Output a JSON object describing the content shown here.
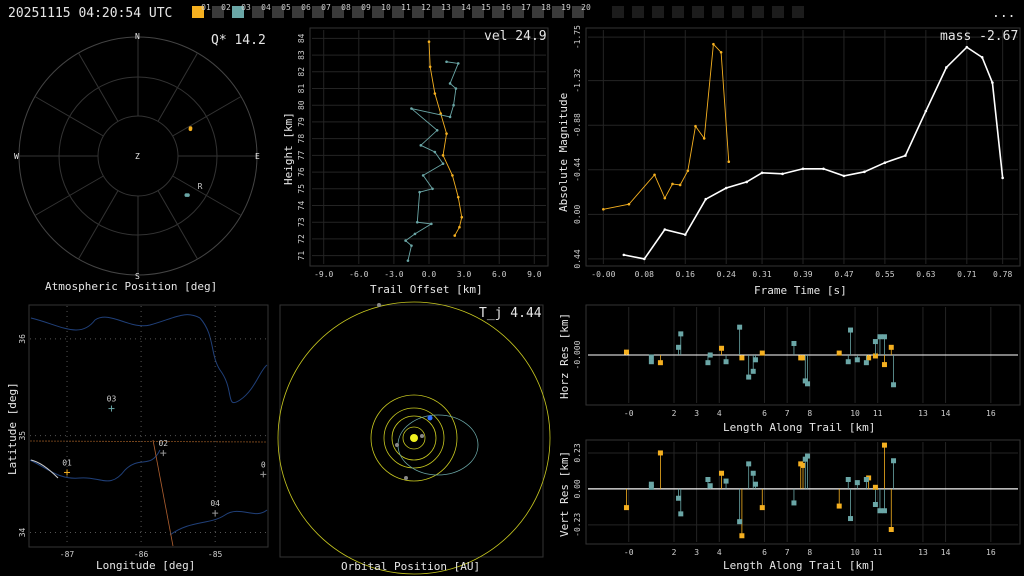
{
  "header": {
    "timestamp": "20251115 04:20:54 UTC",
    "menu": "...",
    "stations": [
      {
        "label": "01",
        "state": "active",
        "color": "#f5b020"
      },
      {
        "label": "02",
        "state": "off"
      },
      {
        "label": "03",
        "state": "active",
        "color": "#6aa6a6"
      },
      {
        "label": "04",
        "state": "off"
      },
      {
        "label": "05",
        "state": "off"
      },
      {
        "label": "06",
        "state": "off"
      },
      {
        "label": "07",
        "state": "off"
      },
      {
        "label": "08",
        "state": "off"
      },
      {
        "label": "09",
        "state": "off"
      },
      {
        "label": "10",
        "state": "off"
      },
      {
        "label": "11",
        "state": "off"
      },
      {
        "label": "12",
        "state": "off"
      },
      {
        "label": "13",
        "state": "off"
      },
      {
        "label": "14",
        "state": "off"
      },
      {
        "label": "15",
        "state": "off"
      },
      {
        "label": "16",
        "state": "off"
      },
      {
        "label": "17",
        "state": "off"
      },
      {
        "label": "18",
        "state": "off"
      },
      {
        "label": "19",
        "state": "off"
      },
      {
        "label": "20",
        "state": "off"
      }
    ]
  },
  "colors": {
    "orange": "#f5b020",
    "teal": "#6aa6a6",
    "yellow": "#e0e020",
    "white": "#ffffff",
    "grid": "#2a2a2a",
    "blue": "#3070ff"
  },
  "chart_data": [
    {
      "id": "atmospheric",
      "type": "scatter",
      "xlabel": "Atmospheric Position [deg]",
      "annotation": "Q* 14.2",
      "compass": {
        "n": "N",
        "s": "S",
        "e": "E",
        "w": "W",
        "zenith": "Z"
      },
      "series": [
        {
          "color": "orange",
          "points": [
            [
              45.0,
              62.0
            ],
            [
              44.5,
              63.0
            ]
          ]
        },
        {
          "color": "teal",
          "label": "R",
          "points": [
            [
              48.0,
              128.0
            ],
            [
              47.0,
              129.0
            ]
          ]
        }
      ]
    },
    {
      "id": "height",
      "type": "line",
      "ylabel": "Height [km]",
      "xlabel": "Trail Offset [km]",
      "annotation": "vel 24.9",
      "xlim": [
        -10,
        10
      ],
      "ylim": [
        70.5,
        84.5
      ],
      "xticks": [
        "-9.0",
        "-6.0",
        "-3.0",
        "0.0",
        "3.0",
        "6.0",
        "9.0"
      ],
      "yticks": [
        "71",
        "72",
        "73",
        "74",
        "75",
        "76",
        "77",
        "78",
        "79",
        "80",
        "81",
        "82",
        "83",
        "84"
      ],
      "series": [
        {
          "color": "orange",
          "points": [
            [
              0.0,
              83.8
            ],
            [
              0.1,
              82.3
            ],
            [
              0.5,
              80.7
            ],
            [
              1.0,
              79.5
            ],
            [
              1.5,
              78.3
            ],
            [
              1.2,
              77.0
            ],
            [
              2.0,
              75.8
            ],
            [
              2.5,
              74.5
            ],
            [
              2.8,
              73.3
            ],
            [
              2.6,
              72.7
            ],
            [
              2.2,
              72.2
            ]
          ]
        },
        {
          "color": "teal",
          "points": [
            [
              1.5,
              82.6
            ],
            [
              2.5,
              82.5
            ],
            [
              1.8,
              81.3
            ],
            [
              2.3,
              81.0
            ],
            [
              2.1,
              80.0
            ],
            [
              1.8,
              79.3
            ],
            [
              -1.5,
              79.8
            ],
            [
              0.7,
              78.5
            ],
            [
              -0.7,
              77.6
            ],
            [
              0.5,
              77.2
            ],
            [
              1.2,
              76.5
            ],
            [
              -0.5,
              75.8
            ],
            [
              0.3,
              75.0
            ],
            [
              -0.8,
              74.8
            ],
            [
              -1.0,
              73.0
            ],
            [
              0.2,
              72.9
            ],
            [
              -1.2,
              72.3
            ],
            [
              -2.0,
              71.9
            ],
            [
              -1.5,
              71.6
            ],
            [
              -1.8,
              70.7
            ]
          ]
        }
      ]
    },
    {
      "id": "magnitude",
      "type": "line",
      "ylabel": "Absolute Magnitude",
      "xlabel": "Frame Time [s]",
      "annotation": "mass -2.67",
      "xlim": [
        -0.03,
        0.81
      ],
      "ylim": [
        0.49,
        -1.82
      ],
      "xticks": [
        "-0.00",
        "0.08",
        "0.16",
        "0.24",
        "0.31",
        "0.39",
        "0.47",
        "0.55",
        "0.63",
        "0.71",
        "0.78"
      ],
      "yticks": [
        "0.44",
        "0.00",
        "-0.44",
        "-0.88",
        "-1.32",
        "-1.75"
      ],
      "series": [
        {
          "color": "orange",
          "points": [
            [
              0.0,
              -0.05
            ],
            [
              0.05,
              -0.1
            ],
            [
              0.1,
              -0.39
            ],
            [
              0.12,
              -0.16
            ],
            [
              0.135,
              -0.3
            ],
            [
              0.15,
              -0.29
            ],
            [
              0.165,
              -0.43
            ],
            [
              0.18,
              -0.87
            ],
            [
              0.197,
              -0.75
            ],
            [
              0.215,
              -1.68
            ],
            [
              0.23,
              -1.6
            ],
            [
              0.245,
              -0.52
            ]
          ]
        },
        {
          "color": "white",
          "points": [
            [
              0.04,
              0.4
            ],
            [
              0.08,
              0.44
            ],
            [
              0.12,
              0.15
            ],
            [
              0.16,
              0.2
            ],
            [
              0.2,
              -0.15
            ],
            [
              0.24,
              -0.26
            ],
            [
              0.28,
              -0.32
            ],
            [
              0.31,
              -0.41
            ],
            [
              0.35,
              -0.4
            ],
            [
              0.39,
              -0.45
            ],
            [
              0.43,
              -0.45
            ],
            [
              0.47,
              -0.38
            ],
            [
              0.51,
              -0.42
            ],
            [
              0.55,
              -0.51
            ],
            [
              0.59,
              -0.58
            ],
            [
              0.63,
              -1.02
            ],
            [
              0.67,
              -1.45
            ],
            [
              0.71,
              -1.65
            ],
            [
              0.74,
              -1.55
            ],
            [
              0.76,
              -1.3
            ],
            [
              0.78,
              -0.36
            ]
          ]
        }
      ]
    },
    {
      "id": "map",
      "type": "scatter",
      "ylabel": "Latitude [deg]",
      "xlabel": "Longitude [deg]",
      "xlim": [
        -87.5,
        -84.3
      ],
      "ylim": [
        33.85,
        36.35
      ],
      "xticks": [
        "-87",
        "-86",
        "-85"
      ],
      "yticks": [
        "34",
        "35",
        "36"
      ],
      "stations": [
        {
          "label": "01",
          "lon": -87.0,
          "lat": 34.62,
          "color": "orange"
        },
        {
          "label": "02",
          "lon": -85.7,
          "lat": 34.82,
          "color": "grey"
        },
        {
          "label": "03",
          "lon": -86.4,
          "lat": 35.28,
          "color": "teal"
        },
        {
          "label": "04",
          "lon": -85.0,
          "lat": 34.2,
          "color": "grey"
        },
        {
          "label": "0",
          "lon": -84.35,
          "lat": 34.6,
          "color": "grey"
        }
      ]
    },
    {
      "id": "orbit",
      "type": "scatter",
      "xlabel": "Orbital Position [AU]",
      "annotation": "T_j 4.44"
    },
    {
      "id": "horz_res",
      "type": "scatter",
      "ylabel": "Horz Res [km]",
      "xlabel": "Length Along Trail [km]",
      "xlim": [
        -1.8,
        17.2
      ],
      "ylim": [
        -0.5,
        0.5
      ],
      "xticks": [
        "-0",
        "2",
        "3",
        "4",
        "6",
        "7",
        "8",
        "10",
        "11",
        "13",
        "14",
        "16"
      ],
      "yticks": [
        "-0.000"
      ],
      "series": [
        {
          "color": "orange",
          "points": [
            [
              -0.1,
              0.03
            ],
            [
              1.4,
              -0.08
            ],
            [
              4.1,
              0.07
            ],
            [
              5.0,
              -0.03
            ],
            [
              5.9,
              0.02
            ],
            [
              7.6,
              -0.03
            ],
            [
              7.7,
              -0.03
            ],
            [
              9.3,
              0.02
            ],
            [
              10.6,
              -0.03
            ],
            [
              10.9,
              -0.01
            ],
            [
              11.3,
              -0.1
            ],
            [
              11.6,
              0.08
            ]
          ]
        },
        {
          "color": "teal",
          "points": [
            [
              1.0,
              -0.02
            ],
            [
              1.0,
              -0.07
            ],
            [
              2.2,
              0.08
            ],
            [
              2.3,
              0.22
            ],
            [
              3.5,
              -0.08
            ],
            [
              3.6,
              0.0
            ],
            [
              4.3,
              -0.07
            ],
            [
              4.9,
              0.29
            ],
            [
              5.3,
              -0.23
            ],
            [
              5.5,
              -0.17
            ],
            [
              5.6,
              -0.05
            ],
            [
              7.3,
              0.12
            ],
            [
              7.8,
              -0.27
            ],
            [
              7.9,
              -0.3
            ],
            [
              9.7,
              -0.07
            ],
            [
              9.8,
              0.26
            ],
            [
              10.1,
              -0.05
            ],
            [
              10.5,
              -0.08
            ],
            [
              10.9,
              0.14
            ],
            [
              11.1,
              0.19
            ],
            [
              11.3,
              0.19
            ],
            [
              11.7,
              -0.31
            ]
          ]
        }
      ]
    },
    {
      "id": "vert_res",
      "type": "scatter",
      "ylabel": "Vert Res [km]",
      "xlabel": "Length Along Trail [km]",
      "xlim": [
        -1.8,
        17.2
      ],
      "ylim": [
        -0.34,
        0.3
      ],
      "xticks": [
        "-0",
        "2",
        "3",
        "4",
        "6",
        "7",
        "8",
        "10",
        "11",
        "13",
        "14",
        "16"
      ],
      "yticks": [
        "-0.23",
        "0.00",
        "0.23"
      ],
      "series": [
        {
          "color": "orange",
          "points": [
            [
              -0.1,
              -0.12
            ],
            [
              1.4,
              0.23
            ],
            [
              4.1,
              0.1
            ],
            [
              5.0,
              -0.3
            ],
            [
              5.9,
              -0.12
            ],
            [
              7.6,
              0.16
            ],
            [
              7.7,
              0.15
            ],
            [
              9.3,
              -0.11
            ],
            [
              10.6,
              0.07
            ],
            [
              10.9,
              0.01
            ],
            [
              11.3,
              0.28
            ],
            [
              11.6,
              -0.26
            ]
          ]
        },
        {
          "color": "teal",
          "points": [
            [
              1.0,
              0.03
            ],
            [
              1.0,
              0.01
            ],
            [
              2.2,
              -0.06
            ],
            [
              2.3,
              -0.16
            ],
            [
              3.5,
              0.06
            ],
            [
              3.6,
              0.02
            ],
            [
              4.3,
              0.05
            ],
            [
              4.9,
              -0.21
            ],
            [
              5.3,
              0.16
            ],
            [
              5.5,
              0.1
            ],
            [
              5.6,
              0.03
            ],
            [
              7.3,
              -0.09
            ],
            [
              7.8,
              0.19
            ],
            [
              7.9,
              0.21
            ],
            [
              9.7,
              0.06
            ],
            [
              9.8,
              -0.19
            ],
            [
              10.1,
              0.04
            ],
            [
              10.5,
              0.06
            ],
            [
              10.9,
              -0.1
            ],
            [
              11.1,
              -0.14
            ],
            [
              11.3,
              -0.14
            ],
            [
              11.7,
              0.18
            ]
          ]
        }
      ]
    }
  ]
}
